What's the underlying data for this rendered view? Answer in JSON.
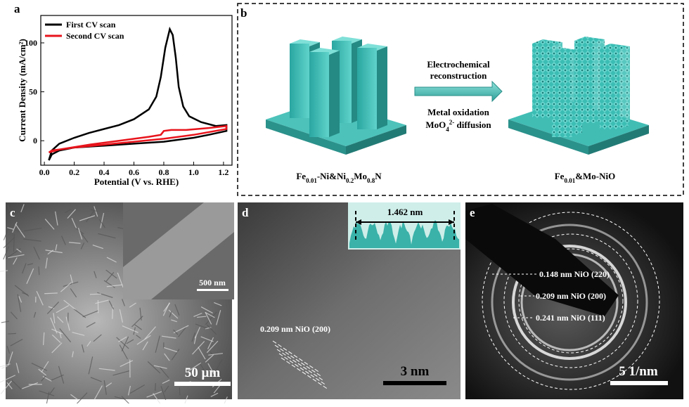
{
  "chart_data": {
    "type": "line",
    "panel": "a",
    "xlabel": "Potential (V vs. RHE)",
    "ylabel": "Current Density (mA/cm²)",
    "xlim": [
      -0.024,
      1.257
    ],
    "ylim": [
      -25,
      128
    ],
    "xticks": [
      {
        "value": 0,
        "label": "0.0"
      },
      0.2,
      0.4,
      0.6,
      0.8,
      {
        "value": 1,
        "label": "1.0"
      },
      1.2
    ],
    "yticks": [
      0,
      50,
      100
    ],
    "series": [
      {
        "name": "First CV scan",
        "color": "#000000",
        "x": [
          0.03,
          0.05,
          0.1,
          0.2,
          0.3,
          0.4,
          0.5,
          0.6,
          0.7,
          0.75,
          0.78,
          0.81,
          0.84,
          0.86,
          0.88,
          0.9,
          0.93,
          0.97,
          1.05,
          1.15,
          1.22,
          1.22,
          1.1,
          1.0,
          0.9,
          0.8,
          0.6,
          0.4,
          0.2,
          0.1,
          0.05,
          0.03
        ],
        "values": [
          -20,
          -10,
          -3,
          3,
          8,
          12,
          16,
          22,
          32,
          45,
          65,
          95,
          114,
          108,
          85,
          55,
          35,
          25,
          19,
          15,
          16,
          10,
          6,
          3,
          1,
          -1,
          -3,
          -5,
          -7,
          -10,
          -14,
          -20
        ]
      },
      {
        "name": "Second CV scan",
        "color": "#e8141c",
        "x": [
          0.03,
          0.1,
          0.3,
          0.5,
          0.7,
          0.78,
          0.8,
          0.85,
          0.95,
          1.1,
          1.22,
          1.22,
          1.0,
          0.8,
          0.6,
          0.4,
          0.2,
          0.05,
          0.03
        ],
        "values": [
          -12,
          -9,
          -4,
          0,
          4,
          6,
          10,
          11,
          11,
          13,
          15,
          12,
          6,
          2,
          -1,
          -4,
          -7,
          -10,
          -12
        ]
      }
    ]
  },
  "panel_b": {
    "letter": "b",
    "arrow_top": [
      "Electrochemical",
      "reconstruction"
    ],
    "arrow_bottom_1": "Metal oxidation",
    "arrow_bottom_2": {
      "parts": [
        {
          "text": "MoO"
        },
        {
          "sub": "4"
        },
        {
          "sup": "2-"
        },
        {
          "text": " diffusion"
        }
      ]
    },
    "left_label": {
      "parts": [
        {
          "text": "Fe"
        },
        {
          "sub": "0.01"
        },
        {
          "text": "-Ni&Ni"
        },
        {
          "sub": "0.2"
        },
        {
          "text": "Mo"
        },
        {
          "sub": "0.8"
        },
        {
          "text": "N"
        }
      ]
    },
    "right_label": {
      "parts": [
        {
          "text": "Fe"
        },
        {
          "sub": "0.01"
        },
        {
          "text": "&Mo-NiO"
        }
      ]
    }
  },
  "panel_c": {
    "letter": "c",
    "inset_scale": "500 nm",
    "scale": "50 µm"
  },
  "panel_d": {
    "letter": "d",
    "inset_distance": "1.462 nm",
    "fringe": "0.209 nm NiO (200)",
    "scale": "3 nm"
  },
  "panel_e": {
    "letter": "e",
    "rings": [
      "0.148 nm NiO (220)",
      "0.209 nm NiO (200)",
      "0.241 nm NiO (111)"
    ],
    "scale": "5 1/nm"
  }
}
